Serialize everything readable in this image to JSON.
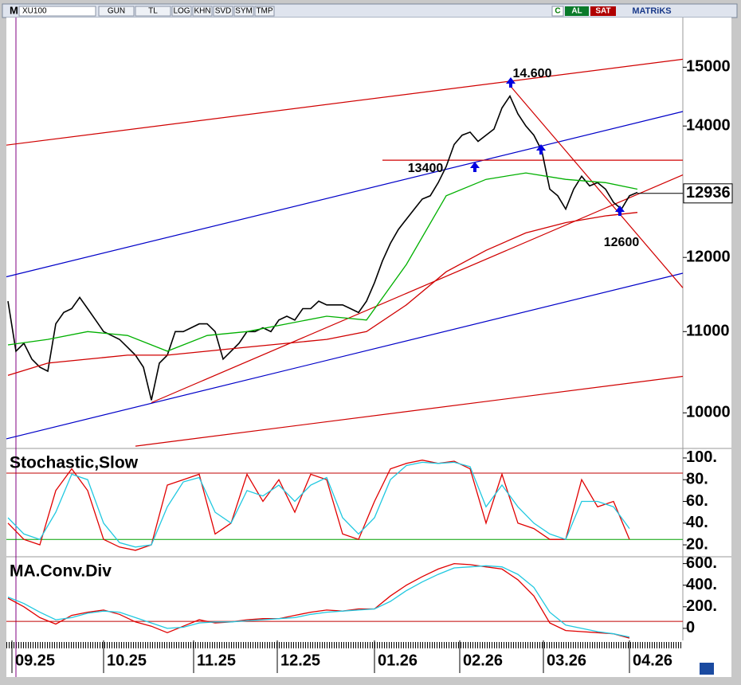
{
  "toolbar": {
    "logo": "M",
    "symbol": "XU100",
    "buttons": [
      "GUN",
      "TL",
      "LOG",
      "KHN",
      "SVD",
      "SYM",
      "TMP"
    ],
    "right": [
      "C",
      "AL",
      "SAT",
      "MATRiKS"
    ]
  },
  "chart_data": [
    {
      "type": "line",
      "log_scale": true,
      "xlim": [
        -0.2,
        84.7
      ],
      "ylim": [
        9600,
        15900
      ],
      "yticks": [
        10000,
        11000,
        12000,
        14000,
        15000
      ],
      "last_value": 12936,
      "annotations": [
        "14.600",
        "13400",
        "12600"
      ],
      "series": [
        {
          "color": "#000000",
          "values": [
            11400,
            10750,
            10850,
            10650,
            10550,
            10500,
            11100,
            11250,
            11300,
            11450,
            11300,
            11150,
            11000,
            10950,
            10900,
            10800,
            10700,
            10550,
            10150,
            10600,
            10700,
            11000,
            11000,
            11050,
            11100,
            11100,
            11000,
            10650,
            10750,
            10850,
            11000,
            11000,
            11050,
            11000,
            11150,
            11200,
            11150,
            11300,
            11300,
            11400,
            11350,
            11350,
            11350,
            11300,
            11250,
            11400,
            11650,
            11950,
            12200,
            12400,
            12550,
            12700,
            12850,
            12900,
            13100,
            13350,
            13700,
            13850,
            13900,
            13750,
            13850,
            13950,
            14300,
            14500,
            14200,
            14000,
            13850,
            13600,
            13000,
            12900,
            12700,
            13000,
            13200,
            13050,
            13100,
            13000,
            12800,
            12700,
            12900,
            12950
          ]
        },
        {
          "color": "#00b000",
          "x": [
            0,
            5,
            10,
            15,
            20,
            25,
            30,
            35,
            40,
            45,
            50,
            55,
            60,
            65,
            70,
            75,
            79
          ],
          "values": [
            10830,
            10900,
            11000,
            10950,
            10750,
            10950,
            11000,
            11100,
            11200,
            11150,
            11900,
            12900,
            13150,
            13250,
            13150,
            13100,
            13000
          ]
        },
        {
          "color": "#d00000",
          "x": [
            0,
            5,
            10,
            15,
            20,
            25,
            30,
            35,
            40,
            45,
            50,
            55,
            60,
            65,
            70,
            75,
            79
          ],
          "values": [
            10450,
            10600,
            10650,
            10700,
            10700,
            10750,
            10800,
            10850,
            10900,
            11000,
            11350,
            11800,
            12100,
            12350,
            12500,
            12600,
            12650
          ]
        }
      ],
      "trendlines": [
        {
          "color": "#d00000",
          "x": [
            -0.2,
            84.7
          ],
          "values": [
            13690,
            15140
          ]
        },
        {
          "color": "#0000c8",
          "x": [
            -0.2,
            84.7
          ],
          "values": [
            11730,
            14240
          ]
        },
        {
          "color": "#0000c8",
          "x": [
            -0.2,
            84.7
          ],
          "values": [
            9700,
            11780
          ]
        },
        {
          "color": "#d00000",
          "x": [
            16,
            84.7
          ],
          "values": [
            9617,
            10437
          ]
        },
        {
          "color": "#d00000",
          "x": [
            18,
            84.7
          ],
          "values": [
            10120,
            13220
          ]
        },
        {
          "color": "#d00000",
          "x": [
            63,
            84.7
          ],
          "values": [
            14680,
            11580
          ]
        },
        {
          "color": "#d00000",
          "x": [
            47,
            84.7
          ],
          "values": [
            13450,
            13450
          ]
        }
      ]
    },
    {
      "type": "line",
      "title": "Stochastic,Slow",
      "xlim": [
        -0.2,
        84.7
      ],
      "ylim": [
        10.5,
        107.3
      ],
      "yticks": [
        {
          "value": 20,
          "label": "20."
        },
        {
          "value": 40,
          "label": "40."
        },
        {
          "value": 60,
          "label": "60."
        },
        {
          "value": 80,
          "label": "80."
        },
        {
          "value": 100,
          "label": "100."
        }
      ],
      "ref_lines": [
        {
          "value": 86,
          "color": "#c00000"
        },
        {
          "value": 25,
          "color": "#00a000"
        }
      ],
      "series": [
        {
          "color": "#e00000",
          "x": [
            0,
            2,
            4,
            6,
            8,
            10,
            12,
            14,
            16,
            18,
            20,
            22,
            24,
            26,
            28,
            30,
            32,
            34,
            36,
            38,
            40,
            42,
            44,
            46,
            48,
            50,
            52,
            54,
            56,
            58,
            60,
            62,
            64,
            66,
            68,
            70,
            72,
            74,
            76,
            78
          ],
          "values": [
            40,
            25,
            20,
            70,
            90,
            70,
            25,
            18,
            15,
            20,
            75,
            80,
            85,
            30,
            40,
            85,
            60,
            80,
            50,
            85,
            80,
            30,
            25,
            60,
            90,
            95,
            98,
            95,
            97,
            90,
            40,
            85,
            40,
            35,
            25,
            25,
            80,
            55,
            60,
            25
          ]
        },
        {
          "color": "#20c8e0",
          "x": [
            0,
            2,
            4,
            6,
            8,
            10,
            12,
            14,
            16,
            18,
            20,
            22,
            24,
            26,
            28,
            30,
            32,
            34,
            36,
            38,
            40,
            42,
            44,
            46,
            48,
            50,
            52,
            54,
            56,
            58,
            60,
            62,
            64,
            66,
            68,
            70,
            72,
            74,
            76,
            78
          ],
          "values": [
            45,
            30,
            25,
            50,
            85,
            80,
            40,
            22,
            18,
            20,
            55,
            78,
            82,
            50,
            40,
            70,
            65,
            75,
            60,
            75,
            82,
            45,
            30,
            45,
            80,
            93,
            96,
            95,
            96,
            92,
            55,
            75,
            55,
            40,
            30,
            25,
            60,
            60,
            55,
            35
          ]
        }
      ]
    },
    {
      "type": "line",
      "title": "MA.Conv.Div",
      "xlim": [
        -0.2,
        84.7
      ],
      "ylim": [
        -104,
        656
      ],
      "yticks": [
        0,
        {
          "value": 200,
          "label": "200."
        },
        {
          "value": 400,
          "label": "400."
        },
        {
          "value": 600,
          "label": "600."
        }
      ],
      "xticks": [
        {
          "value": 0.5,
          "label": "09.25"
        },
        {
          "value": 12,
          "label": "10.25"
        },
        {
          "value": 23.3,
          "label": "11.25"
        },
        {
          "value": 33.8,
          "label": "12.25"
        },
        {
          "value": 46,
          "label": "01.26"
        },
        {
          "value": 56.7,
          "label": "02.26"
        },
        {
          "value": 67.2,
          "label": "03.26"
        },
        {
          "value": 78,
          "label": "04.26"
        }
      ],
      "ref_lines": [
        {
          "value": 65,
          "color": "#c00000"
        }
      ],
      "series": [
        {
          "color": "#e00000",
          "x": [
            0,
            2,
            4,
            6,
            8,
            10,
            12,
            14,
            16,
            18,
            20,
            22,
            24,
            26,
            28,
            30,
            32,
            34,
            36,
            38,
            40,
            42,
            44,
            46,
            48,
            50,
            52,
            54,
            56,
            58,
            60,
            62,
            64,
            66,
            68,
            70,
            72,
            74,
            76,
            78
          ],
          "values": [
            280,
            200,
            100,
            40,
            120,
            150,
            170,
            130,
            60,
            20,
            -40,
            20,
            80,
            50,
            60,
            80,
            90,
            90,
            120,
            150,
            170,
            160,
            180,
            180,
            300,
            400,
            480,
            550,
            600,
            590,
            570,
            550,
            450,
            300,
            50,
            -20,
            -30,
            -40,
            -50,
            -90
          ]
        },
        {
          "color": "#20c8e0",
          "x": [
            0,
            2,
            4,
            6,
            8,
            10,
            12,
            14,
            16,
            18,
            20,
            22,
            24,
            26,
            28,
            30,
            32,
            34,
            36,
            38,
            40,
            42,
            44,
            46,
            48,
            50,
            52,
            54,
            56,
            58,
            60,
            62,
            64,
            66,
            68,
            70,
            72,
            74,
            76,
            78
          ],
          "values": [
            290,
            230,
            150,
            80,
            100,
            140,
            160,
            150,
            100,
            50,
            0,
            10,
            50,
            60,
            60,
            70,
            80,
            90,
            100,
            130,
            150,
            160,
            170,
            180,
            250,
            350,
            430,
            500,
            560,
            570,
            580,
            570,
            500,
            380,
            150,
            30,
            0,
            -30,
            -50,
            -80
          ]
        }
      ]
    }
  ]
}
